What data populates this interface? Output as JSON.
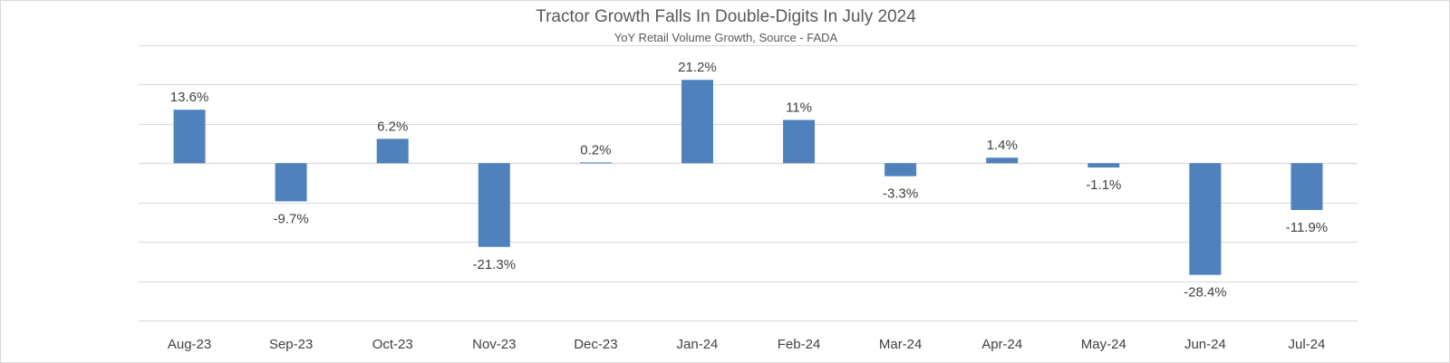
{
  "chart_data": {
    "type": "bar",
    "title": "Tractor Growth Falls In Double-Digits In July 2024",
    "subtitle": "YoY Retail Volume Growth, Source - FADA",
    "categories": [
      "Aug-23",
      "Sep-23",
      "Oct-23",
      "Nov-23",
      "Dec-23",
      "Jan-24",
      "Feb-24",
      "Mar-24",
      "Apr-24",
      "May-24",
      "Jun-24",
      "Jul-24"
    ],
    "values": [
      13.6,
      -9.7,
      6.2,
      -21.3,
      0.2,
      21.2,
      11,
      -3.3,
      1.4,
      -1.1,
      -28.4,
      -11.9
    ],
    "data_labels": [
      "13.6%",
      "-9.7%",
      "6.2%",
      "-21.3%",
      "0.2%",
      "21.2%",
      "11%",
      "-3.3%",
      "1.4%",
      "-1.1%",
      "-28.4%",
      "-11.9%"
    ],
    "ylim": [
      -40,
      30
    ],
    "y_grid_step": 10,
    "grid": true,
    "legend": "none",
    "bar_color": "#4f81bd",
    "grid_color": "#d9d9d9"
  }
}
